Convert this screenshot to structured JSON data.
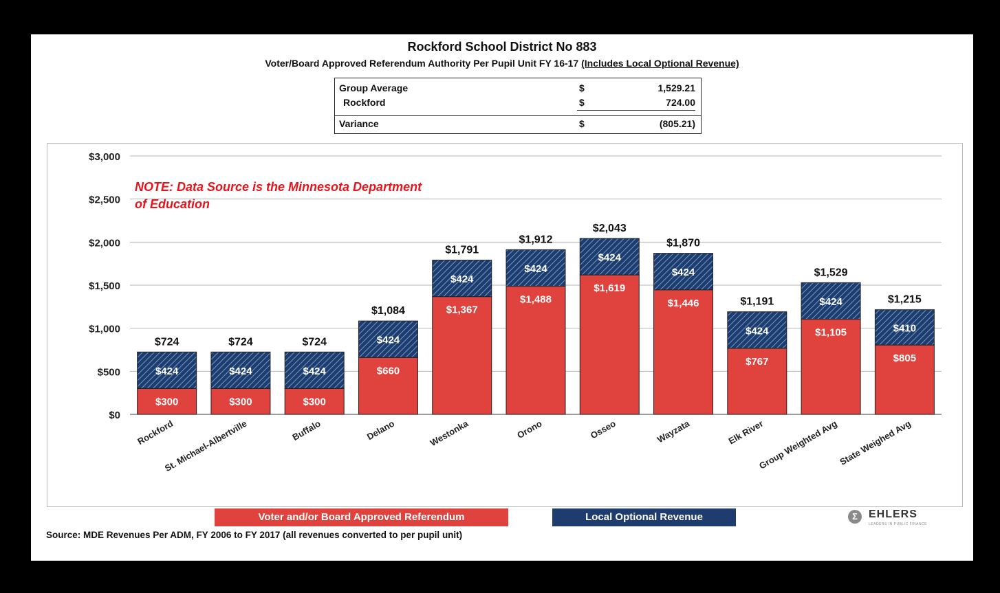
{
  "title": "Rockford School District No 883",
  "subtitle": "Voter/Board Approved Referendum Authority Per Pupil Unit FY 16-17",
  "subtitle_emph": "(Includes Local Optional Revenue)",
  "summary": {
    "rows": [
      {
        "label": "Group Average",
        "dollar": "$",
        "amount": "1,529.21"
      },
      {
        "label": "Rockford",
        "dollar": "$",
        "amount": "724.00"
      },
      {
        "label": "Variance",
        "dollar": "$",
        "amount": "(805.21)"
      }
    ]
  },
  "note": "NOTE: Data Source is the Minnesota Department of Education",
  "source": "Source: MDE Revenues Per ADM, FY 2006 to FY 2017 (all revenues converted to per pupil unit)",
  "logo": {
    "symbol": "Σ",
    "text": "EHLERS",
    "tagline": "LEADERS IN PUBLIC FINANCE"
  },
  "colors": {
    "referendum": "#e0423d",
    "lor": "#1f3c6e",
    "lor_hatch": "#6f9cc7"
  },
  "chart_data": {
    "type": "bar",
    "stacked": true,
    "categories": [
      "Rockford",
      "St. Michael-Albertville",
      "Buffalo",
      "Delano",
      "Westonka",
      "Orono",
      "Osseo",
      "Wayzata",
      "Elk River",
      "Group Weighted Avg",
      "State Weighed Avg"
    ],
    "series": [
      {
        "name": "Voter and/or Board Approved Referendum",
        "values": [
          300,
          300,
          300,
          660,
          1367,
          1488,
          1619,
          1446,
          767,
          1105,
          805
        ],
        "labels": [
          "$300",
          "$300",
          "$300",
          "$660",
          "$1,367",
          "$1,488",
          "$1,619",
          "$1,446",
          "$767",
          "$1,105",
          "$805"
        ]
      },
      {
        "name": "Local Optional Revenue",
        "values": [
          424,
          424,
          424,
          424,
          424,
          424,
          424,
          424,
          424,
          424,
          410
        ],
        "labels": [
          "$424",
          "$424",
          "$424",
          "$424",
          "$424",
          "$424",
          "$424",
          "$424",
          "$424",
          "$424",
          "$410"
        ]
      }
    ],
    "totals": [
      724,
      724,
      724,
      1084,
      1791,
      1912,
      2043,
      1870,
      1191,
      1529,
      1215
    ],
    "total_labels": [
      "$724",
      "$724",
      "$724",
      "$1,084",
      "$1,791",
      "$1,912",
      "$2,043",
      "$1,870",
      "$1,191",
      "$1,529",
      "$1,215"
    ],
    "yticks": [
      0,
      500,
      1000,
      1500,
      2000,
      2500,
      3000
    ],
    "ytick_labels": [
      "$0",
      "$500",
      "$1,000",
      "$1,500",
      "$2,000",
      "$2,500",
      "$3,000"
    ],
    "ylim": [
      0,
      3000
    ],
    "grid": true,
    "legend": "bottom"
  }
}
